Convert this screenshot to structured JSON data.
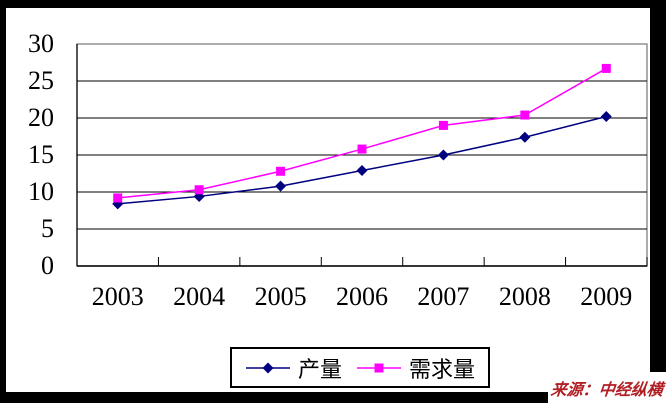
{
  "chart_data": {
    "type": "line",
    "title": "",
    "categories": [
      "2003",
      "2004",
      "2005",
      "2006",
      "2007",
      "2008",
      "2009"
    ],
    "series": [
      {
        "name": "产量",
        "values": [
          8.4,
          9.4,
          10.8,
          12.9,
          15.0,
          17.4,
          20.2
        ],
        "color": "#000080",
        "marker": "diamond"
      },
      {
        "name": "需求量",
        "values": [
          9.2,
          10.3,
          12.8,
          15.8,
          19.0,
          20.4,
          26.7
        ],
        "color": "#FF00FF",
        "marker": "square"
      }
    ],
    "xlabel": "",
    "ylabel": "",
    "ylim": [
      0,
      30
    ],
    "yticks": [
      0,
      5,
      10,
      15,
      20,
      25,
      30
    ],
    "grid": "horizontal",
    "gridline_color": "#000000",
    "plot_border_color": "#808080",
    "legend_position": "bottom"
  },
  "watermark": {
    "text": "来源：中经纵横",
    "color": "#B01F24"
  }
}
